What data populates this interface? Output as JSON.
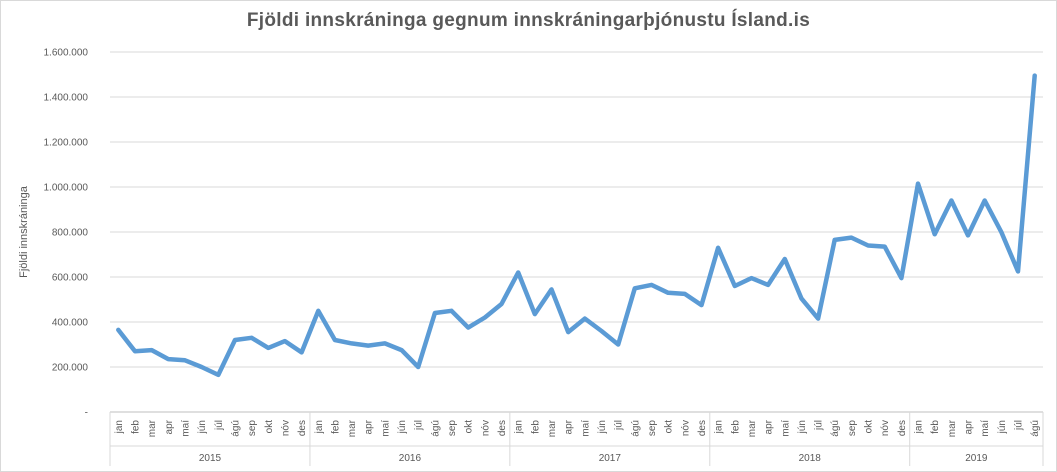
{
  "chart_data": {
    "type": "line",
    "title": "Fjöldi innskráninga  gegnum innskráningarþjónustu  Ísland.is",
    "xlabel": "",
    "ylabel": "Fjöldi innskráninga",
    "ylim": [
      0,
      1600000
    ],
    "y_ticks": [
      "-",
      "200.000",
      "400.000",
      "600.000",
      "800.000",
      "1.000.000",
      "1.200.000",
      "1.400.000",
      "1.600.000"
    ],
    "months": [
      "jan",
      "feb",
      "mar",
      "apr",
      "maí",
      "jún",
      "júl",
      "ágú",
      "sep",
      "okt",
      "nóv",
      "des"
    ],
    "years": [
      "2015",
      "2016",
      "2017",
      "2018",
      "2019"
    ],
    "grid": true,
    "legend": "none",
    "color": "#5b9bd5",
    "categories": [
      "jan 2015",
      "feb 2015",
      "mar 2015",
      "apr 2015",
      "maí 2015",
      "jún 2015",
      "júl 2015",
      "ágú 2015",
      "sep 2015",
      "okt 2015",
      "nóv 2015",
      "des 2015",
      "jan 2016",
      "feb 2016",
      "mar 2016",
      "apr 2016",
      "maí 2016",
      "jún 2016",
      "júl 2016",
      "ágú 2016",
      "sep 2016",
      "okt 2016",
      "nóv 2016",
      "des 2016",
      "jan 2017",
      "feb 2017",
      "mar 2017",
      "apr 2017",
      "maí 2017",
      "jún 2017",
      "júl 2017",
      "ágú 2017",
      "sep 2017",
      "okt 2017",
      "nóv 2017",
      "des 2017",
      "jan 2018",
      "feb 2018",
      "mar 2018",
      "apr 2018",
      "maí 2018",
      "jún 2018",
      "júl 2018",
      "ágú 2018",
      "sep 2018",
      "okt 2018",
      "nóv 2018",
      "des 2018",
      "jan 2019",
      "feb 2019",
      "mar 2019",
      "apr 2019",
      "maí 2019",
      "jún 2019",
      "júl 2019",
      "ágú 2019"
    ],
    "values": [
      365000,
      270000,
      275000,
      235000,
      230000,
      200000,
      165000,
      320000,
      330000,
      285000,
      315000,
      265000,
      450000,
      320000,
      305000,
      295000,
      305000,
      275000,
      200000,
      440000,
      450000,
      375000,
      420000,
      480000,
      620000,
      435000,
      545000,
      355000,
      415000,
      360000,
      300000,
      550000,
      565000,
      530000,
      525000,
      475000,
      730000,
      560000,
      595000,
      565000,
      680000,
      505000,
      415000,
      765000,
      775000,
      740000,
      735000,
      595000,
      1015000,
      790000,
      940000,
      785000,
      940000,
      800000,
      625000,
      1495000
    ]
  }
}
